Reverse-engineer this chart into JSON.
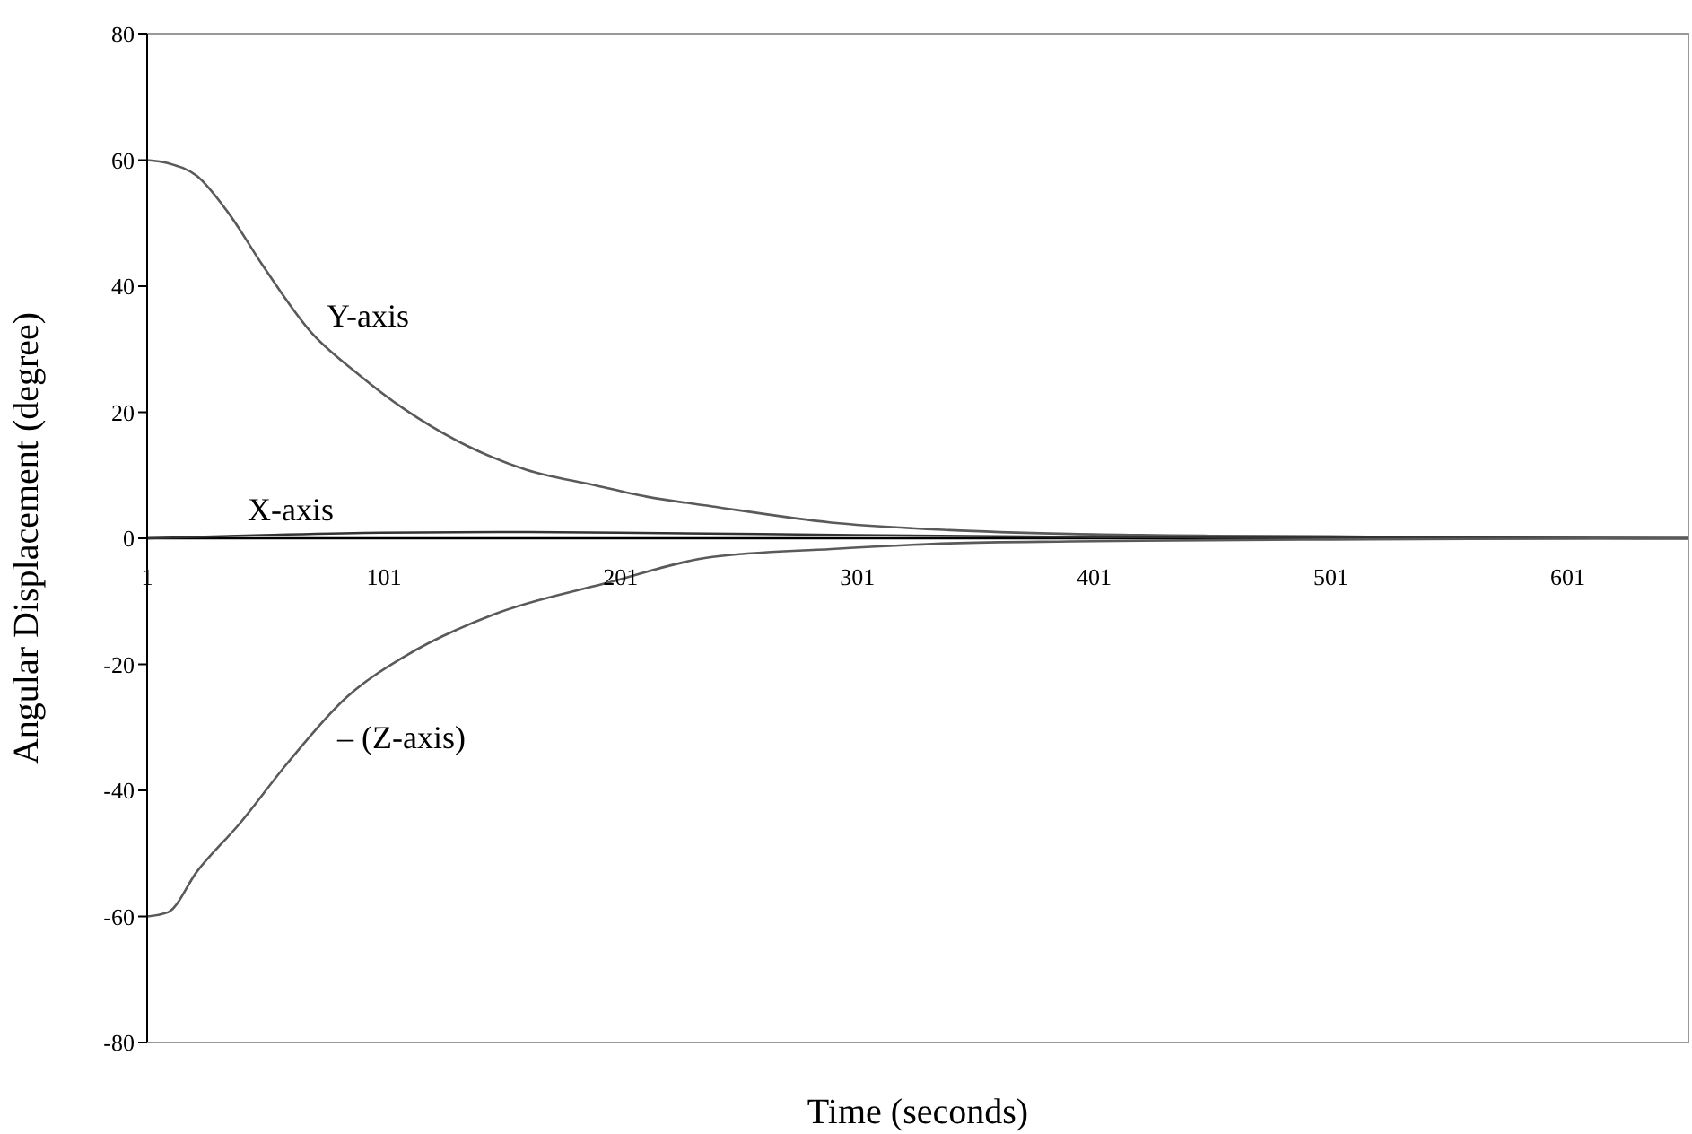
{
  "chart_data": {
    "type": "line",
    "xlabel": "Time (seconds)",
    "ylabel": "Angular Displacement (degree)",
    "xlim": [
      1,
      652
    ],
    "xticks": [
      1,
      101,
      201,
      301,
      401,
      501,
      601
    ],
    "ylim": [
      -80,
      80
    ],
    "yticks": [
      -80,
      -60,
      -40,
      -20,
      0,
      20,
      40,
      60,
      80
    ],
    "marker": "none",
    "line_style": "solid",
    "series": [
      {
        "name": "Y-axis",
        "color": "#5a5a5a",
        "x": [
          1,
          10,
          22,
          35,
          50,
          70,
          90,
          110,
          136,
          161,
          189,
          212,
          239,
          290,
          340,
          391,
          450,
          500,
          560,
          652
        ],
        "values": [
          60,
          59.5,
          57.5,
          51.8,
          43.2,
          32.8,
          26.1,
          20.4,
          14.7,
          10.9,
          8.5,
          6.6,
          5.1,
          2.5,
          1.3,
          0.7,
          0.4,
          0.3,
          0.1,
          0
        ]
      },
      {
        "name": "X-axis",
        "color": "#333333",
        "x": [
          1,
          50,
          100,
          150,
          200,
          300,
          400,
          500,
          652
        ],
        "values": [
          0,
          0.5,
          0.9,
          1,
          0.9,
          0.5,
          0.2,
          0.1,
          0
        ]
      },
      {
        "name": "– (Z-axis)",
        "color": "#5a5a5a",
        "x": [
          1,
          10,
          22,
          40,
          60,
          85,
          110,
          148,
          194,
          239,
          290,
          340,
          391,
          450,
          500,
          560,
          652
        ],
        "values": [
          -60,
          -59.3,
          -52.9,
          -45.3,
          -35.8,
          -25.3,
          -18.7,
          -12,
          -7.2,
          -3,
          -1.7,
          -0.8,
          -0.5,
          -0.3,
          -0.2,
          -0.1,
          0
        ]
      }
    ]
  }
}
